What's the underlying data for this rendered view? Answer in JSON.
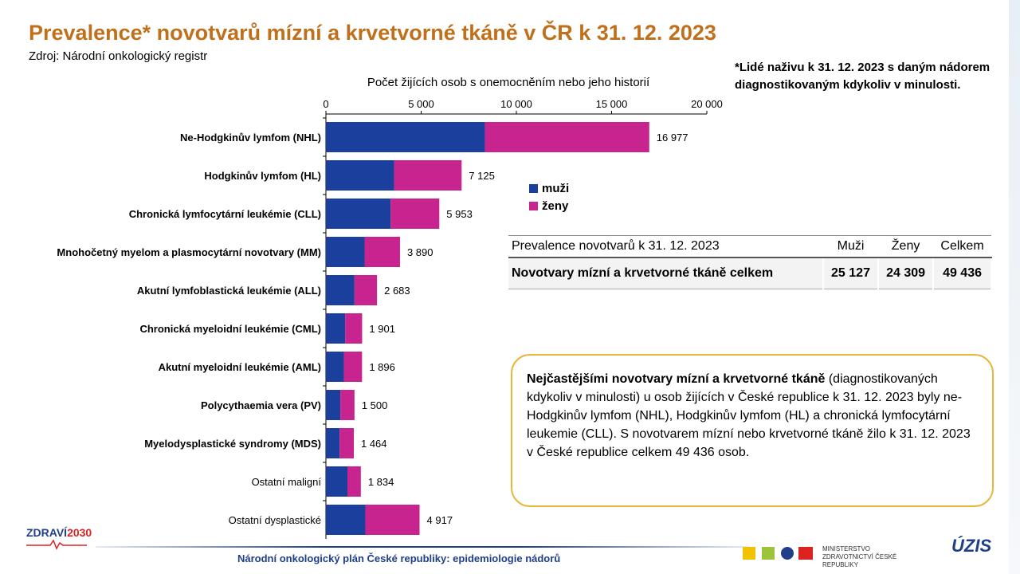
{
  "header": {
    "title": "Prevalence* novotvarů mízní a krvetvorné tkáně v ČR k 31. 12. 2023",
    "source": "Zdroj: Národní onkologický registr",
    "footnote": "*Lidé naživu k 31. 12. 2023 s daným nádorem diagnostikovaným kdykoliv v minulosti."
  },
  "chart_data": {
    "type": "bar",
    "orientation": "horizontal",
    "stacked": true,
    "xlabel": "Počet žijících osob s onemocněním nebo jeho historií",
    "xlim": [
      0,
      20000
    ],
    "xticks": [
      "0",
      "5 000",
      "10 000",
      "15 000",
      "20 000"
    ],
    "xtick_values": [
      0,
      5000,
      10000,
      15000,
      20000
    ],
    "categories": [
      "Ne-Hodgkinův lymfom (NHL)",
      "Hodgkinův lymfom (HL)",
      "Chronická lymfocytární leukémie (CLL)",
      "Mnohočetný myelom a plasmocytární novotvary (MM)",
      "Akutní lymfoblastická leukémie (ALL)",
      "Chronická myeloidní leukémie (CML)",
      "Akutní myeloidní leukémie (AML)",
      "Polycythaemia vera (PV)",
      "Myelodysplastické syndromy (MDS)",
      "Ostatní maligní",
      "Ostatní dysplastické"
    ],
    "bold_categories": [
      true,
      true,
      true,
      true,
      true,
      true,
      true,
      true,
      true,
      false,
      false
    ],
    "series": [
      {
        "name": "muži",
        "color": "#1a3f9c",
        "values": [
          8350,
          3580,
          3400,
          2030,
          1500,
          1010,
          940,
          760,
          720,
          1130,
          2070
        ]
      },
      {
        "name": "ženy",
        "color": "#c8248f",
        "values": [
          8627,
          3545,
          2553,
          1860,
          1183,
          891,
          956,
          740,
          744,
          704,
          2847
        ]
      }
    ],
    "totals": [
      "16 977",
      "7 125",
      "5 953",
      "3 890",
      "2 683",
      "1 901",
      "1 896",
      "1 500",
      "1 464",
      "1 834",
      "4 917"
    ],
    "total_values": [
      16977,
      7125,
      5953,
      3890,
      2683,
      1901,
      1896,
      1500,
      1464,
      1834,
      4917
    ],
    "legend_position": "right"
  },
  "summary_table": {
    "headers": [
      "Prevalence novotvarů k 31. 12. 2023",
      "Muži",
      "Ženy",
      "Celkem"
    ],
    "row": [
      "Novotvary mízní a krvetvorné tkáně celkem",
      "25 127",
      "24 309",
      "49 436"
    ]
  },
  "infobox": {
    "lead": "Nejčastějšími novotvary mízní a krvetvorné tkáně",
    "text": " (diagnostikovaných kdykoliv v minulosti) u osob žijících v České republice k 31. 12. 2023 byly ne-Hodgkinův lymfom (NHL), Hodgkinův lymfom (HL) a chronická lymfocytární leukemie (CLL). S novotvarem mízní nebo krvetvorné tkáně žilo k 31. 12. 2023 v České republice celkem 49 436 osob."
  },
  "footer": {
    "text": "Národní onkologický plán České republiky: epidemiologie nádorů",
    "logo_left_a": "ZDRAVÍ",
    "logo_left_b": "2030",
    "ministry": "MINISTERSTVO ZDRAVOTNICTVÍ ČESKÉ REPUBLIKY",
    "logo_right": "ÚZIS"
  }
}
